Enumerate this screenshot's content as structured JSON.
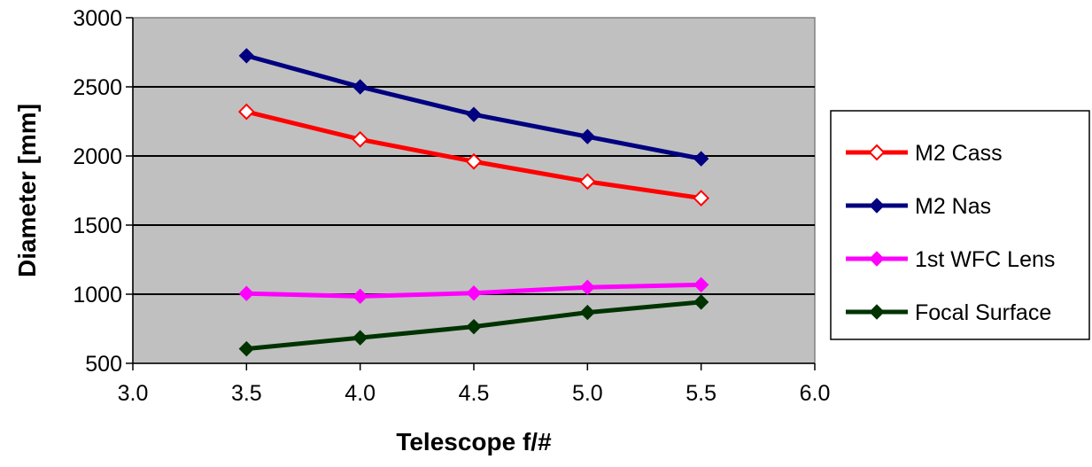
{
  "chart_data": {
    "type": "line",
    "title": "",
    "xlabel": "Telescope f/#",
    "ylabel": "Diameter [mm]",
    "xlim": [
      3.0,
      6.0
    ],
    "ylim": [
      500,
      3000
    ],
    "x_ticks": [
      3.0,
      3.5,
      4.0,
      4.5,
      5.0,
      5.5,
      6.0
    ],
    "x_tick_labels": [
      "3.0",
      "3.5",
      "4.0",
      "4.5",
      "5.0",
      "5.5",
      "6.0"
    ],
    "y_ticks": [
      500,
      1000,
      1500,
      2000,
      2500,
      3000
    ],
    "y_tick_labels": [
      "500",
      "1000",
      "1500",
      "2000",
      "2500",
      "3000"
    ],
    "grid": "horizontal",
    "plot_background": "#c0c0c0",
    "legend_position": "right",
    "series": [
      {
        "name": "M2 Cass",
        "color": "#ff0000",
        "marker": "diamond-open",
        "x": [
          3.5,
          4.0,
          4.5,
          5.0,
          5.5
        ],
        "values": [
          2320,
          2120,
          1960,
          1815,
          1695
        ]
      },
      {
        "name": "M2 Nas",
        "color": "#000080",
        "marker": "diamond",
        "x": [
          3.5,
          4.0,
          4.5,
          5.0,
          5.5
        ],
        "values": [
          2725,
          2500,
          2300,
          2140,
          1980
        ]
      },
      {
        "name": "1st WFC Lens",
        "color": "#ff00ff",
        "marker": "diamond",
        "x": [
          3.5,
          4.0,
          4.5,
          5.0,
          5.5
        ],
        "values": [
          1005,
          985,
          1008,
          1050,
          1068
        ]
      },
      {
        "name": "Focal Surface",
        "color": "#003300",
        "marker": "diamond",
        "x": [
          3.5,
          4.0,
          4.5,
          5.0,
          5.5
        ],
        "values": [
          605,
          685,
          765,
          868,
          943
        ]
      }
    ]
  }
}
